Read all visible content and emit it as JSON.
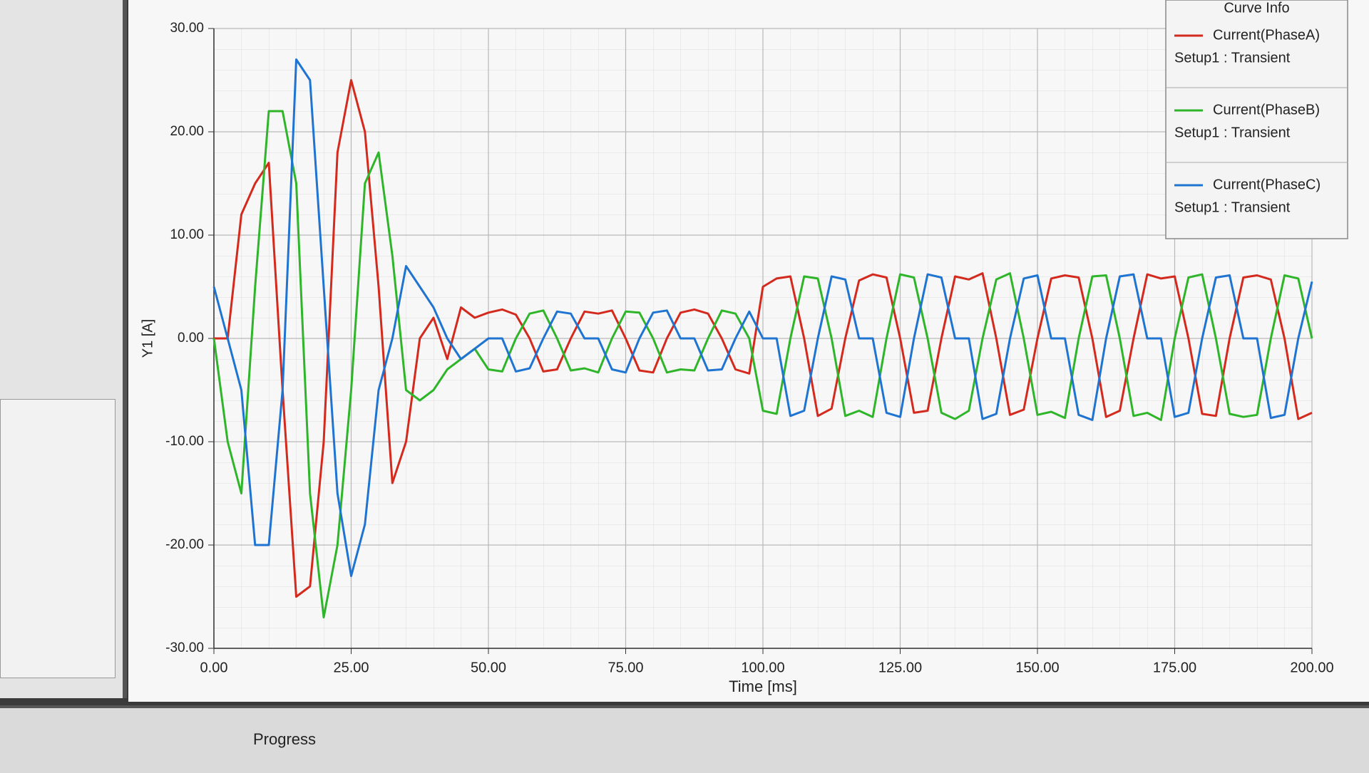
{
  "chart_data": {
    "type": "line",
    "y_label": "Y1 [A]",
    "x_label": "Time [ms]",
    "legend_title": "Curve Info",
    "x": [
      0,
      2.5,
      5,
      7.5,
      10,
      12.5,
      15,
      17.5,
      20,
      22.5,
      25,
      27.5,
      30,
      32.5,
      35,
      37.5,
      40,
      42.5,
      45,
      47.5,
      50,
      52.5,
      55,
      57.5,
      60,
      62.5,
      65,
      67.5,
      70,
      72.5,
      75,
      77.5,
      80,
      82.5,
      85,
      87.5,
      90,
      92.5,
      95,
      97.5,
      100,
      102.5,
      105,
      107.5,
      110,
      112.5,
      115,
      117.5,
      120,
      122.5,
      125,
      127.5,
      130,
      132.5,
      135,
      137.5,
      140,
      142.5,
      145,
      147.5,
      150,
      152.5,
      155,
      157.5,
      160,
      162.5,
      165,
      167.5,
      170,
      172.5,
      175,
      177.5,
      180,
      182.5,
      185,
      187.5,
      190,
      192.5,
      195,
      197.5,
      200
    ],
    "series": [
      {
        "name": "Current(PhaseA)",
        "source": "Setup1 : Transient",
        "color": "#d42a1e",
        "values": [
          0,
          0,
          12,
          15,
          17,
          -5,
          -25,
          -24,
          -10,
          18,
          25,
          20,
          5,
          -14,
          -10,
          0,
          2,
          -2,
          3,
          2,
          2.5,
          2.8,
          2.3,
          0,
          -3.2,
          -3,
          0,
          2.6,
          2.4,
          2.7,
          0,
          -3.1,
          -3.3,
          0,
          2.5,
          2.8,
          2.4,
          0,
          -3,
          -3.4,
          5,
          5.8,
          6,
          0,
          -7.5,
          -6.8,
          0,
          5.6,
          6.2,
          5.9,
          0,
          -7.2,
          -7,
          0,
          6,
          5.7,
          6.3,
          0,
          -7.4,
          -6.9,
          0,
          5.8,
          6.1,
          5.9,
          0,
          -7.6,
          -7,
          0,
          6.2,
          5.8,
          6,
          0,
          -7.3,
          -7.5,
          0,
          5.9,
          6.1,
          5.7,
          0,
          -7.8,
          -7.2
        ]
      },
      {
        "name": "Current(PhaseB)",
        "source": "Setup1 : Transient",
        "color": "#2fb52a",
        "values": [
          0,
          -10,
          -15,
          5,
          22,
          22,
          15,
          -15,
          -27,
          -20,
          -5,
          15,
          18,
          8,
          -5,
          -6,
          -5,
          -3,
          -2,
          -1,
          -3,
          -3.2,
          0,
          2.4,
          2.7,
          0,
          -3.1,
          -2.9,
          -3.3,
          0,
          2.6,
          2.5,
          0,
          -3.3,
          -3,
          -3.1,
          0,
          2.7,
          2.4,
          0,
          -7,
          -7.3,
          0,
          6,
          5.8,
          0,
          -7.5,
          -7,
          -7.6,
          0,
          6.2,
          5.9,
          0,
          -7.2,
          -7.8,
          -7,
          0,
          5.7,
          6.3,
          0,
          -7.4,
          -7.1,
          -7.7,
          0,
          6,
          6.1,
          0,
          -7.5,
          -7.2,
          -7.9,
          0,
          5.9,
          6.2,
          0,
          -7.3,
          -7.6,
          -7.4,
          0,
          6.1,
          5.8,
          0
        ]
      },
      {
        "name": "Current(PhaseC)",
        "source": "Setup1 : Transient",
        "color": "#1f74d1",
        "values": [
          5,
          0,
          -5,
          -20,
          -20,
          -5,
          27,
          25,
          5,
          -15,
          -23,
          -18,
          -5,
          0,
          7,
          5,
          3,
          0,
          -2,
          -1,
          0,
          0,
          -3.2,
          -2.9,
          0,
          2.6,
          2.4,
          0,
          0,
          -3,
          -3.3,
          0,
          2.5,
          2.7,
          0,
          0,
          -3.1,
          -3,
          0,
          2.6,
          0,
          0,
          -7.5,
          -7,
          0,
          6,
          5.7,
          0,
          0,
          -7.2,
          -7.6,
          0,
          6.2,
          5.9,
          0,
          0,
          -7.8,
          -7.3,
          0,
          5.8,
          6.1,
          0,
          0,
          -7.4,
          -7.9,
          0,
          6,
          6.2,
          0,
          0,
          -7.6,
          -7.2,
          0,
          5.9,
          6.1,
          0,
          0,
          -7.7,
          -7.4,
          0,
          5.5
        ]
      }
    ],
    "xlim": [
      0,
      200
    ],
    "xticks": [
      {
        "value": 0,
        "label": "0.00"
      },
      {
        "value": 25,
        "label": "25.00"
      },
      {
        "value": 50,
        "label": "50.00"
      },
      {
        "value": 75,
        "label": "75.00"
      },
      {
        "value": 100,
        "label": "100.00"
      },
      {
        "value": 125,
        "label": "125.00"
      },
      {
        "value": 150,
        "label": "150.00"
      },
      {
        "value": 175,
        "label": "175.00"
      },
      {
        "value": 200,
        "label": "200.00"
      }
    ],
    "ylim": [
      -30,
      30
    ],
    "yticks": [
      {
        "value": -30,
        "label": "-30.00"
      },
      {
        "value": -20,
        "label": "-20.00"
      },
      {
        "value": -10,
        "label": "-10.00"
      },
      {
        "value": 0,
        "label": "0.00"
      },
      {
        "value": 10,
        "label": "10.00"
      },
      {
        "value": 20,
        "label": "20.00"
      },
      {
        "value": 30,
        "label": "30.00"
      }
    ],
    "grid": true,
    "legend": "upper right"
  },
  "ui": {
    "progress_tab": "Progress"
  }
}
